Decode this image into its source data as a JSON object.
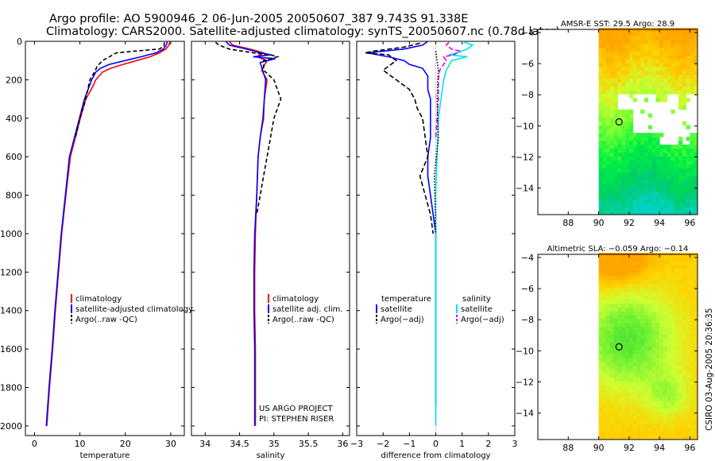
{
  "figure": {
    "title_line1": "Argo profile: AO 5900946_2 06-Jun-2005 20050607_387 9.743S 91.338E",
    "title_line2": "Climatology: CARS2000. Satellite-adjusted climatology: synTS_20050607.nc (0.78d later)",
    "credit": "CSIRO 03-Aug-2005 20:36:35",
    "project_line1": "US ARGO PROJECT",
    "project_line2": "PI: STEPHEN RISER"
  },
  "colors": {
    "climatology": "#ff0000",
    "satellite": "#0000ff",
    "argo": "#000000",
    "salinity_satellite": "#00e5ee",
    "salinity_argo": "#e600e6",
    "map_land_missing": "#ffffff"
  },
  "chart_data": [
    {
      "id": "temperature",
      "type": "line",
      "xlabel": "temperature",
      "ylabel": "",
      "xlim": [
        -2,
        33
      ],
      "ylim": [
        2050,
        0
      ],
      "xticks": [
        0,
        10,
        20,
        30
      ],
      "yticks": [
        0,
        200,
        400,
        600,
        800,
        1000,
        1200,
        1400,
        1600,
        1800,
        2000
      ],
      "legend": [
        "climatology",
        "satellite-adjusted climatology",
        "Argo(..raw -QC)"
      ],
      "series": [
        {
          "name": "climatology",
          "color": "#ff0000",
          "dash": "",
          "points": [
            [
              29.9,
              0
            ],
            [
              29.6,
              20
            ],
            [
              28.9,
              40
            ],
            [
              27.5,
              60
            ],
            [
              25.5,
              80
            ],
            [
              22.5,
              100
            ],
            [
              19.5,
              120
            ],
            [
              16.8,
              140
            ],
            [
              15,
              160
            ],
            [
              13.5,
              200
            ],
            [
              12.5,
              250
            ],
            [
              11.3,
              300
            ],
            [
              10.1,
              400
            ],
            [
              9,
              500
            ],
            [
              7.9,
              600
            ],
            [
              6.9,
              800
            ],
            [
              6,
              1000
            ],
            [
              5.3,
              1200
            ],
            [
              4.6,
              1400
            ],
            [
              4,
              1600
            ],
            [
              3.3,
              1800
            ],
            [
              2.7,
              2000
            ]
          ]
        },
        {
          "name": "satellite-adjusted climatology",
          "color": "#0000ff",
          "dash": "",
          "points": [
            [
              29.3,
              0
            ],
            [
              29,
              20
            ],
            [
              28.4,
              40
            ],
            [
              26.8,
              60
            ],
            [
              23.5,
              80
            ],
            [
              20,
              100
            ],
            [
              16.5,
              120
            ],
            [
              14.5,
              140
            ],
            [
              13.5,
              160
            ],
            [
              12.6,
              200
            ],
            [
              11.8,
              250
            ],
            [
              11,
              300
            ],
            [
              9.9,
              400
            ],
            [
              8.8,
              500
            ],
            [
              7.7,
              600
            ],
            [
              6.8,
              800
            ],
            [
              5.9,
              1000
            ],
            [
              5.2,
              1200
            ],
            [
              4.5,
              1400
            ],
            [
              3.9,
              1600
            ],
            [
              3.2,
              1800
            ],
            [
              2.6,
              2000
            ]
          ]
        },
        {
          "name": "Argo(..raw -QC)",
          "color": "#000000",
          "dash": "5,3",
          "points": [
            [
              28.6,
              5
            ],
            [
              28.5,
              25
            ],
            [
              27.5,
              40
            ],
            [
              22.5,
              50
            ],
            [
              18,
              60
            ],
            [
              16.5,
              80
            ],
            [
              15,
              100
            ],
            [
              13.8,
              130
            ],
            [
              13.2,
              160
            ],
            [
              12.2,
              200
            ],
            [
              11.3,
              300
            ],
            [
              10,
              400
            ],
            [
              9,
              500
            ]
          ]
        }
      ]
    },
    {
      "id": "salinity",
      "type": "line",
      "xlabel": "salinity",
      "ylabel": "",
      "xlim": [
        33.8,
        36.1
      ],
      "ylim": [
        2050,
        0
      ],
      "xticks": [
        34,
        34.5,
        35,
        35.5,
        36
      ],
      "yticks": [
        0,
        200,
        400,
        600,
        800,
        1000,
        1200,
        1400,
        1600,
        1800,
        2000
      ],
      "legend": [
        "climatology",
        "satellite adj. clim.",
        "Argo(..raw -QC)"
      ],
      "series": [
        {
          "name": "climatology",
          "color": "#ff0000",
          "dash": "",
          "points": [
            [
              34.35,
              0
            ],
            [
              34.4,
              20
            ],
            [
              34.65,
              40
            ],
            [
              34.85,
              60
            ],
            [
              34.75,
              80
            ],
            [
              34.9,
              100
            ],
            [
              34.82,
              150
            ],
            [
              34.9,
              200
            ],
            [
              34.86,
              300
            ],
            [
              34.85,
              400
            ],
            [
              34.8,
              500
            ],
            [
              34.77,
              600
            ],
            [
              34.75,
              800
            ],
            [
              34.73,
              1000
            ],
            [
              34.72,
              1200
            ],
            [
              34.72,
              1400
            ],
            [
              34.73,
              1600
            ],
            [
              34.73,
              1800
            ],
            [
              34.73,
              2000
            ]
          ]
        },
        {
          "name": "satellite adj. clim.",
          "color": "#0000ff",
          "dash": "",
          "points": [
            [
              34.3,
              0
            ],
            [
              34.35,
              20
            ],
            [
              34.6,
              40
            ],
            [
              34.8,
              60
            ],
            [
              34.95,
              70
            ],
            [
              34.7,
              80
            ],
            [
              35.02,
              90
            ],
            [
              34.8,
              110
            ],
            [
              34.88,
              200
            ],
            [
              34.86,
              300
            ],
            [
              34.84,
              400
            ],
            [
              34.8,
              500
            ],
            [
              34.77,
              600
            ],
            [
              34.75,
              800
            ],
            [
              34.72,
              1000
            ],
            [
              34.71,
              1200
            ],
            [
              34.71,
              1400
            ],
            [
              34.72,
              1600
            ],
            [
              34.72,
              1800
            ],
            [
              34.72,
              2000
            ]
          ]
        },
        {
          "name": "Argo(..raw -QC)",
          "color": "#000000",
          "dash": "5,3",
          "points": [
            [
              34.15,
              5
            ],
            [
              34.2,
              20
            ],
            [
              34.35,
              40
            ],
            [
              34.7,
              60
            ],
            [
              34.95,
              70
            ],
            [
              35.05,
              80
            ],
            [
              34.85,
              100
            ],
            [
              34.85,
              150
            ],
            [
              35,
              200
            ],
            [
              35.1,
              300
            ],
            [
              35,
              400
            ],
            [
              34.95,
              500
            ],
            [
              34.9,
              600
            ],
            [
              34.85,
              700
            ],
            [
              34.8,
              800
            ],
            [
              34.75,
              900
            ]
          ]
        }
      ]
    },
    {
      "id": "difference",
      "type": "line",
      "xlabel": "difference from climatology",
      "ylabel": "",
      "xlim": [
        -3,
        3
      ],
      "ylim": [
        2050,
        0
      ],
      "xticks": [
        -3,
        -2,
        -1,
        0,
        1,
        2,
        3
      ],
      "yticks": [
        0,
        200,
        400,
        600,
        800,
        1000,
        1200,
        1400,
        1600,
        1800,
        2000
      ],
      "legend_left_title": "temperature",
      "legend_left": [
        "satellite",
        "Argo(−adj)"
      ],
      "legend_right_title": "salinity",
      "legend_right": [
        "satellite",
        "Argo(−adj)"
      ],
      "series": [
        {
          "name": "temperature satellite",
          "color": "#0000ff",
          "dash": "",
          "points": [
            [
              -0.3,
              0
            ],
            [
              -0.5,
              20
            ],
            [
              -1.2,
              40
            ],
            [
              -2.6,
              60
            ],
            [
              -1.8,
              80
            ],
            [
              -1.2,
              100
            ],
            [
              -1,
              120
            ],
            [
              -0.5,
              140
            ],
            [
              -0.3,
              180
            ],
            [
              -0.3,
              250
            ],
            [
              -0.2,
              300
            ],
            [
              -0.2,
              400
            ],
            [
              -0.2,
              500
            ],
            [
              -0.3,
              600
            ],
            [
              -0.3,
              700
            ],
            [
              -0.2,
              800
            ],
            [
              -0.1,
              900
            ],
            [
              0,
              1000
            ],
            [
              0,
              1200
            ],
            [
              0,
              1500
            ],
            [
              0,
              1800
            ],
            [
              0,
              1900
            ]
          ]
        },
        {
          "name": "temperature Argo(-adj)",
          "color": "#000000",
          "dash": "6,3",
          "points": [
            [
              -0.6,
              10
            ],
            [
              -1.2,
              30
            ],
            [
              -2.3,
              50
            ],
            [
              -2.7,
              60
            ],
            [
              -1.8,
              70
            ],
            [
              -1.5,
              100
            ],
            [
              -2,
              150
            ],
            [
              -1.5,
              200
            ],
            [
              -1,
              250
            ],
            [
              -0.8,
              300
            ],
            [
              -0.7,
              350
            ],
            [
              -0.5,
              400
            ],
            [
              -0.4,
              500
            ],
            [
              -0.3,
              600
            ],
            [
              -0.6,
              700
            ],
            [
              -0.4,
              800
            ],
            [
              -0.2,
              900
            ],
            [
              -0.1,
              1000
            ]
          ]
        },
        {
          "name": "salinity satellite",
          "color": "#00e5ee",
          "dash": "",
          "points": [
            [
              1,
              0
            ],
            [
              1.4,
              20
            ],
            [
              1.2,
              40
            ],
            [
              0.8,
              60
            ],
            [
              0.5,
              70
            ],
            [
              1.2,
              80
            ],
            [
              0.6,
              100
            ],
            [
              0.4,
              150
            ],
            [
              0.3,
              200
            ],
            [
              0.2,
              300
            ],
            [
              0.1,
              400
            ],
            [
              0.05,
              600
            ],
            [
              0,
              800
            ],
            [
              0,
              1000
            ],
            [
              0,
              1200
            ],
            [
              0,
              1500
            ],
            [
              0,
              1800
            ],
            [
              0,
              2000
            ]
          ]
        },
        {
          "name": "salinity Argo(-adj)",
          "color": "#e600e6",
          "dash": "6,3",
          "points": [
            [
              0.5,
              5
            ],
            [
              0.4,
              20
            ],
            [
              0.6,
              40
            ],
            [
              0.9,
              50
            ],
            [
              0.7,
              70
            ],
            [
              0.3,
              80
            ],
            [
              0.4,
              100
            ],
            [
              0.15,
              150
            ],
            [
              0.1,
              200
            ],
            [
              0.1,
              300
            ],
            [
              0.05,
              400
            ],
            [
              0,
              500
            ]
          ]
        },
        {
          "name": "combined dotted",
          "color": "#000000",
          "dash": "1.5,2",
          "points": [
            [
              0,
              50
            ],
            [
              0.1,
              150
            ],
            [
              0.05,
              300
            ],
            [
              0.1,
              500
            ],
            [
              -0.05,
              700
            ],
            [
              0,
              1000
            ]
          ]
        }
      ]
    },
    {
      "id": "sst-map",
      "type": "heatmap",
      "title": "AMSR-E SST: 29.5 Argo: 28.9",
      "xlim": [
        86,
        96.5
      ],
      "ylim": [
        -15.7,
        -3.8
      ],
      "xticks": [
        88,
        90,
        92,
        94,
        96
      ],
      "yticks": [
        -4,
        -6,
        -8,
        -10,
        -12,
        -14
      ],
      "data_lon_min": 90,
      "argo_position": [
        91.338,
        -9.743
      ],
      "missing_regions": "clouds/no-data near -8 to -11 latitude",
      "colormap": [
        "#ffa500",
        "#ffcc00",
        "#ccff33",
        "#66ff33",
        "#00ee44",
        "#00cc66",
        "#00d2c8"
      ]
    },
    {
      "id": "sla-map",
      "type": "heatmap",
      "title": "Altimetric SLA: −0.059 Argo: −0.14",
      "xlim": [
        86,
        96.5
      ],
      "ylim": [
        -15.7,
        -3.8
      ],
      "xticks": [
        88,
        90,
        92,
        94,
        96
      ],
      "yticks": [
        -4,
        -6,
        -8,
        -10,
        -12,
        -14
      ],
      "data_lon_min": 90,
      "argo_position": [
        91.338,
        -9.743
      ],
      "colormap": [
        "#ffa500",
        "#ffd200",
        "#ccff33",
        "#66ee33",
        "#22cc33",
        "#119933"
      ]
    }
  ]
}
